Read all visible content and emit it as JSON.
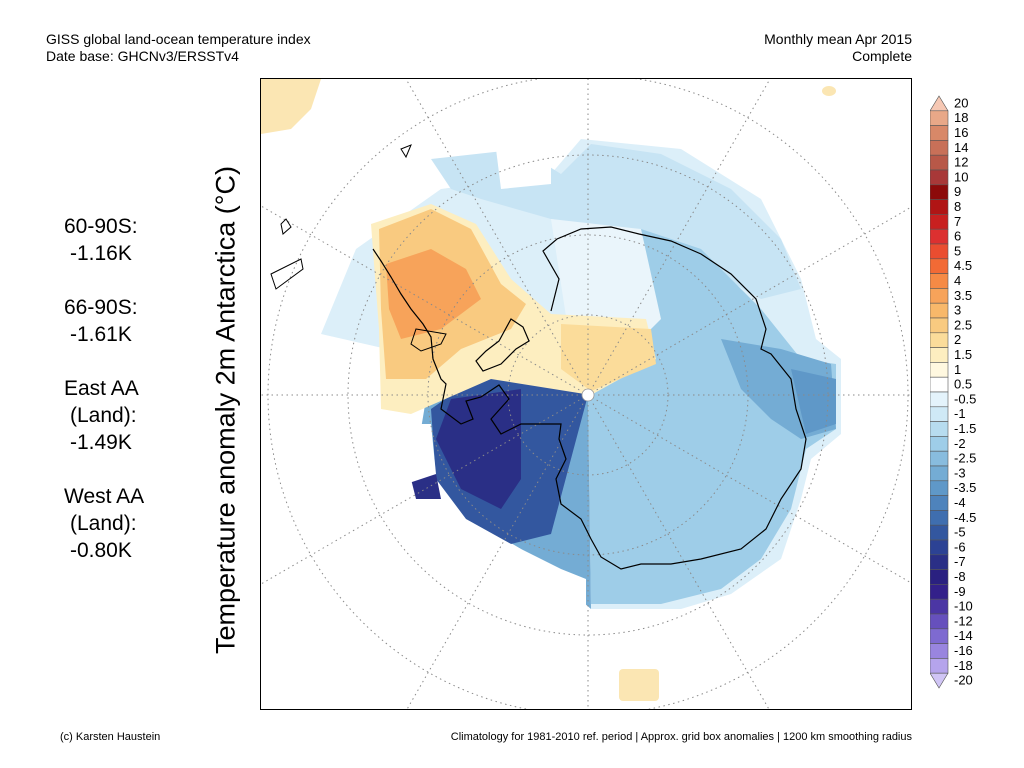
{
  "header": {
    "title_line1": "GISS global land-ocean temperature index",
    "title_line2": "Date base: GHCNv3/ERSSTv4",
    "right_line1": "Monthly mean Apr 2015",
    "right_line2": "Complete"
  },
  "y_label": "Temperature anomaly 2m Antarctica (°C)",
  "stats": [
    {
      "label": "60-90S:",
      "value": "-1.16K"
    },
    {
      "label": "66-90S:",
      "value": "-1.61K"
    },
    {
      "label": "East AA",
      "label2": "(Land):",
      "value": "-1.49K"
    },
    {
      "label": "West AA",
      "label2": "(Land):",
      "value": "-0.80K"
    }
  ],
  "footer": {
    "left": "(c) Karsten Haustein",
    "right": "Climatology for 1981-2010 ref. period | Approx. grid box anomalies | 1200 km smoothing radius"
  },
  "colorbar": {
    "labels": [
      "20",
      "18",
      "16",
      "14",
      "12",
      "10",
      "9",
      "8",
      "7",
      "6",
      "5",
      "4.5",
      "4",
      "3.5",
      "3",
      "2.5",
      "2",
      "1.5",
      "1",
      "0.5",
      "-0.5",
      "-1",
      "-1.5",
      "-2",
      "-2.5",
      "-3",
      "-3.5",
      "-4",
      "-4.5",
      "-5",
      "-6",
      "-7",
      "-8",
      "-9",
      "-10",
      "-12",
      "-14",
      "-16",
      "-18",
      "-20"
    ],
    "colors": [
      "#f6c8b4",
      "#e8a888",
      "#d88868",
      "#c87058",
      "#b85848",
      "#a83838",
      "#8c0a0a",
      "#b01515",
      "#c82020",
      "#dc3030",
      "#ea4d30",
      "#f26a35",
      "#f68a45",
      "#f7a35a",
      "#f8b86a",
      "#f9ca80",
      "#fbdc9a",
      "#fdeec0",
      "#fff8e0",
      "#ffffff",
      "#e4f3fb",
      "#cfe9f6",
      "#b7dcef",
      "#9ecde8",
      "#88bcde",
      "#74acd4",
      "#5f98c8",
      "#4e83bc",
      "#3f6eaf",
      "#33579f",
      "#2c4294",
      "#2a2f86",
      "#2a2080",
      "#33208a",
      "#4b36a4",
      "#6650bd",
      "#7e6ad0",
      "#9985df",
      "#b5a4ec",
      "#d0c5f5"
    ]
  }
}
